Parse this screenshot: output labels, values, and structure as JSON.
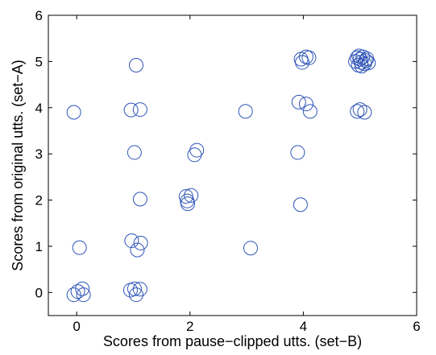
{
  "chart_data": {
    "type": "scatter",
    "xlabel": "Scores from pause−clipped utts. (set−B)",
    "ylabel": "Scores from original utts. (set−A)",
    "xlim": [
      -0.5,
      6
    ],
    "ylim": [
      -0.5,
      6
    ],
    "xticks": [
      "0",
      "2",
      "4",
      "6"
    ],
    "yticks": [
      "0",
      "1",
      "2",
      "3",
      "4",
      "5",
      "6"
    ],
    "grid": false,
    "marker": "open-circle",
    "marker_color": "#2f55b8",
    "points": [
      {
        "x": -0.05,
        "y": -0.05
      },
      {
        "x": 0.02,
        "y": 0.02
      },
      {
        "x": 0.1,
        "y": 0.08
      },
      {
        "x": 0.12,
        "y": -0.05
      },
      {
        "x": 0.95,
        "y": 0.05
      },
      {
        "x": 1.02,
        "y": 0.08
      },
      {
        "x": 1.05,
        "y": -0.05
      },
      {
        "x": 1.12,
        "y": 0.07
      },
      {
        "x": 0.05,
        "y": 0.97
      },
      {
        "x": 0.97,
        "y": 1.12
      },
      {
        "x": 1.13,
        "y": 1.07
      },
      {
        "x": 1.07,
        "y": 0.92
      },
      {
        "x": 3.07,
        "y": 0.96
      },
      {
        "x": 1.12,
        "y": 2.02
      },
      {
        "x": 1.93,
        "y": 2.08
      },
      {
        "x": 1.95,
        "y": 1.98
      },
      {
        "x": 1.96,
        "y": 1.92
      },
      {
        "x": 2.02,
        "y": 2.1
      },
      {
        "x": 3.95,
        "y": 1.9
      },
      {
        "x": 1.02,
        "y": 3.03
      },
      {
        "x": 2.08,
        "y": 2.98
      },
      {
        "x": 2.12,
        "y": 3.08
      },
      {
        "x": 3.9,
        "y": 3.03
      },
      {
        "x": -0.05,
        "y": 3.9
      },
      {
        "x": 0.96,
        "y": 3.95
      },
      {
        "x": 1.12,
        "y": 3.96
      },
      {
        "x": 2.98,
        "y": 3.92
      },
      {
        "x": 3.92,
        "y": 4.12
      },
      {
        "x": 4.05,
        "y": 4.08
      },
      {
        "x": 4.12,
        "y": 3.92
      },
      {
        "x": 4.95,
        "y": 3.92
      },
      {
        "x": 5.0,
        "y": 3.96
      },
      {
        "x": 5.08,
        "y": 3.9
      },
      {
        "x": 1.05,
        "y": 4.92
      },
      {
        "x": 3.96,
        "y": 5.05
      },
      {
        "x": 3.98,
        "y": 4.98
      },
      {
        "x": 4.05,
        "y": 5.1
      },
      {
        "x": 4.1,
        "y": 5.08
      },
      {
        "x": 4.92,
        "y": 5.0
      },
      {
        "x": 4.95,
        "y": 5.08
      },
      {
        "x": 4.97,
        "y": 4.92
      },
      {
        "x": 5.0,
        "y": 5.05
      },
      {
        "x": 5.02,
        "y": 4.98
      },
      {
        "x": 5.05,
        "y": 5.1
      },
      {
        "x": 5.08,
        "y": 4.95
      },
      {
        "x": 5.1,
        "y": 5.02
      },
      {
        "x": 5.12,
        "y": 5.06
      },
      {
        "x": 5.15,
        "y": 4.97
      },
      {
        "x": 4.98,
        "y": 5.12
      },
      {
        "x": 5.03,
        "y": 4.9
      }
    ]
  }
}
